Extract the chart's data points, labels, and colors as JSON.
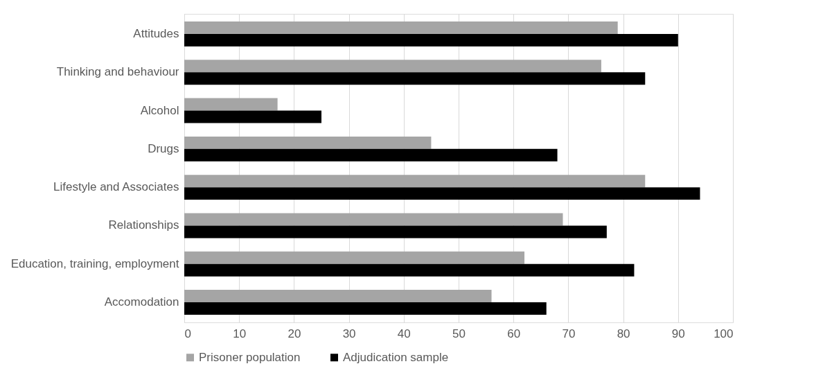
{
  "chart_data": {
    "type": "bar",
    "orientation": "horizontal",
    "categories": [
      "Attitudes",
      "Thinking and behaviour",
      "Alcohol",
      "Drugs",
      "Lifestyle and Associates",
      "Relationships",
      "Education, training, employment",
      "Accomodation"
    ],
    "series": [
      {
        "name": "Prisoner population",
        "color": "#a5a5a5",
        "values": [
          79,
          76,
          17,
          45,
          84,
          69,
          62,
          56
        ]
      },
      {
        "name": "Adjudication sample",
        "color": "#000000",
        "values": [
          90,
          84,
          25,
          68,
          94,
          77,
          82,
          66
        ]
      }
    ],
    "xlim": [
      0,
      100
    ],
    "xticks": [
      0,
      10,
      20,
      30,
      40,
      50,
      60,
      70,
      80,
      90,
      100
    ],
    "grid": "x",
    "legend": "bottom"
  }
}
